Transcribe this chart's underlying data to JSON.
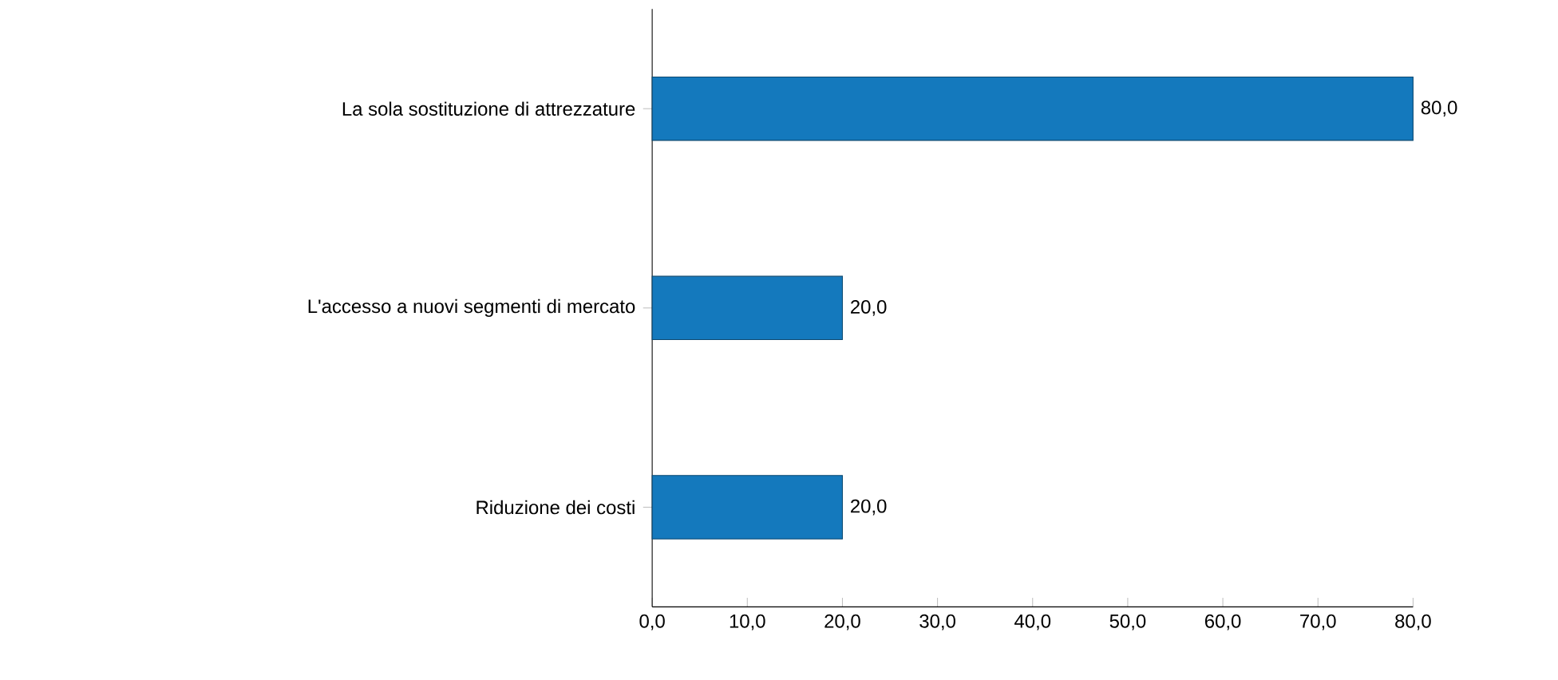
{
  "chart_data": {
    "type": "bar",
    "orientation": "horizontal",
    "categories": [
      "La sola sostituzione di attrezzature",
      "L'accesso a nuovi segmenti di mercato",
      "Riduzione dei costi"
    ],
    "values": [
      80,
      20,
      20
    ],
    "value_labels": [
      "80,0",
      "20,0",
      "20,0"
    ],
    "color": "#1479bd",
    "xlim": [
      0,
      80
    ],
    "xticks": [
      {
        "value": 0,
        "label": "0,0"
      },
      {
        "value": 10,
        "label": "10,0"
      },
      {
        "value": 20,
        "label": "20,0"
      },
      {
        "value": 30,
        "label": "30,0"
      },
      {
        "value": 40,
        "label": "40,0"
      },
      {
        "value": 50,
        "label": "50,0"
      },
      {
        "value": 60,
        "label": "60,0"
      },
      {
        "value": 70,
        "label": "70,0"
      },
      {
        "value": 80,
        "label": "80,0"
      }
    ],
    "data_labels": false
  }
}
